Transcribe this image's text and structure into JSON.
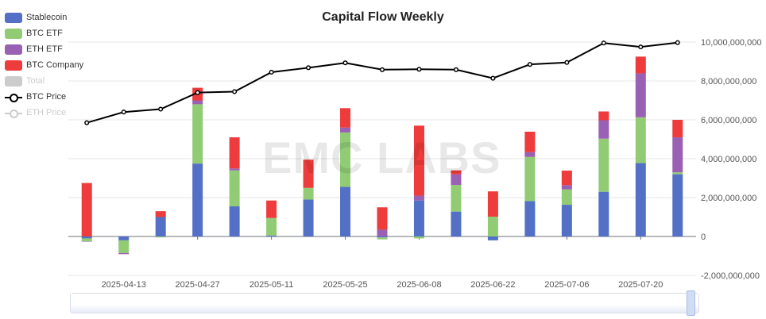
{
  "title": "Capital Flow Weekly",
  "watermark": "EMC LABS",
  "legend": [
    {
      "label": "Stablecoin",
      "color": "#5470c6",
      "kind": "bar",
      "active": true
    },
    {
      "label": "BTC ETF",
      "color": "#91cc75",
      "kind": "bar",
      "active": true
    },
    {
      "label": "ETH ETF",
      "color": "#9a60b4",
      "kind": "bar",
      "active": true
    },
    {
      "label": "BTC Company",
      "color": "#ee3b3b",
      "kind": "bar",
      "active": true
    },
    {
      "label": "Total",
      "color": "#cccccc",
      "kind": "bar",
      "active": false
    },
    {
      "label": "BTC Price",
      "color": "#000000",
      "kind": "line",
      "active": true
    },
    {
      "label": "ETH Price",
      "color": "#cccccc",
      "kind": "line",
      "active": false
    }
  ],
  "chart_data": {
    "type": "bar",
    "title": "Capital Flow Weekly",
    "stacked": true,
    "weeks": [
      "2025-04-06",
      "2025-04-13",
      "2025-04-20",
      "2025-04-27",
      "2025-05-04",
      "2025-05-11",
      "2025-05-18",
      "2025-05-25",
      "2025-06-01",
      "2025-06-08",
      "2025-06-15",
      "2025-06-22",
      "2025-06-29",
      "2025-07-06",
      "2025-07-13",
      "2025-07-20",
      "2025-07-27"
    ],
    "x_tick_labels": [
      "2025-04-13",
      "2025-04-27",
      "2025-05-11",
      "2025-05-25",
      "2025-06-08",
      "2025-06-22",
      "2025-07-06",
      "2025-07-20"
    ],
    "y_ticks": [
      -2000000000,
      0,
      2000000000,
      4000000000,
      6000000000,
      8000000000,
      10000000000
    ],
    "y_tick_labels": [
      "-2,000,000,000",
      "0",
      "2,000,000,000",
      "4,000,000,000",
      "6,000,000,000",
      "8,000,000,000",
      "10,000,000,000"
    ],
    "ylim": [
      -2000000000,
      10000000000
    ],
    "series": [
      {
        "name": "Stablecoin",
        "color": "#5470c6",
        "values": [
          -100000000,
          -200000000,
          1000000000,
          3750000000,
          1550000000,
          50000000,
          1900000000,
          2550000000,
          -50000000,
          1850000000,
          1280000000,
          -200000000,
          1820000000,
          1630000000,
          2300000000,
          3780000000,
          3200000000
        ]
      },
      {
        "name": "BTC ETF",
        "color": "#91cc75",
        "values": [
          -150000000,
          -650000000,
          -50000000,
          3050000000,
          1850000000,
          900000000,
          600000000,
          2800000000,
          -100000000,
          -100000000,
          1370000000,
          1020000000,
          2270000000,
          790000000,
          2730000000,
          2350000000,
          100000000
        ]
      },
      {
        "name": "ETH ETF",
        "color": "#9a60b4",
        "values": [
          -20000000,
          -60000000,
          0,
          200000000,
          100000000,
          0,
          0,
          250000000,
          350000000,
          250000000,
          550000000,
          0,
          250000000,
          220000000,
          950000000,
          2260000000,
          1800000000
        ]
      },
      {
        "name": "BTC Company",
        "color": "#ee3b3b",
        "values": [
          2750000000,
          0,
          300000000,
          650000000,
          1600000000,
          900000000,
          1450000000,
          1000000000,
          1150000000,
          3600000000,
          200000000,
          1300000000,
          1050000000,
          750000000,
          450000000,
          860000000,
          900000000
        ]
      }
    ],
    "line_series": [
      {
        "name": "BTC Price",
        "color": "#000000",
        "axis": "same",
        "values": [
          5850000000,
          6400000000,
          6550000000,
          7400000000,
          7450000000,
          8450000000,
          8680000000,
          8930000000,
          8580000000,
          8600000000,
          8580000000,
          8140000000,
          8850000000,
          8950000000,
          9950000000,
          9750000000,
          9970000000
        ]
      }
    ],
    "grid": true,
    "legend_position": "top-left"
  },
  "zoom_slider": {
    "visible": true
  }
}
